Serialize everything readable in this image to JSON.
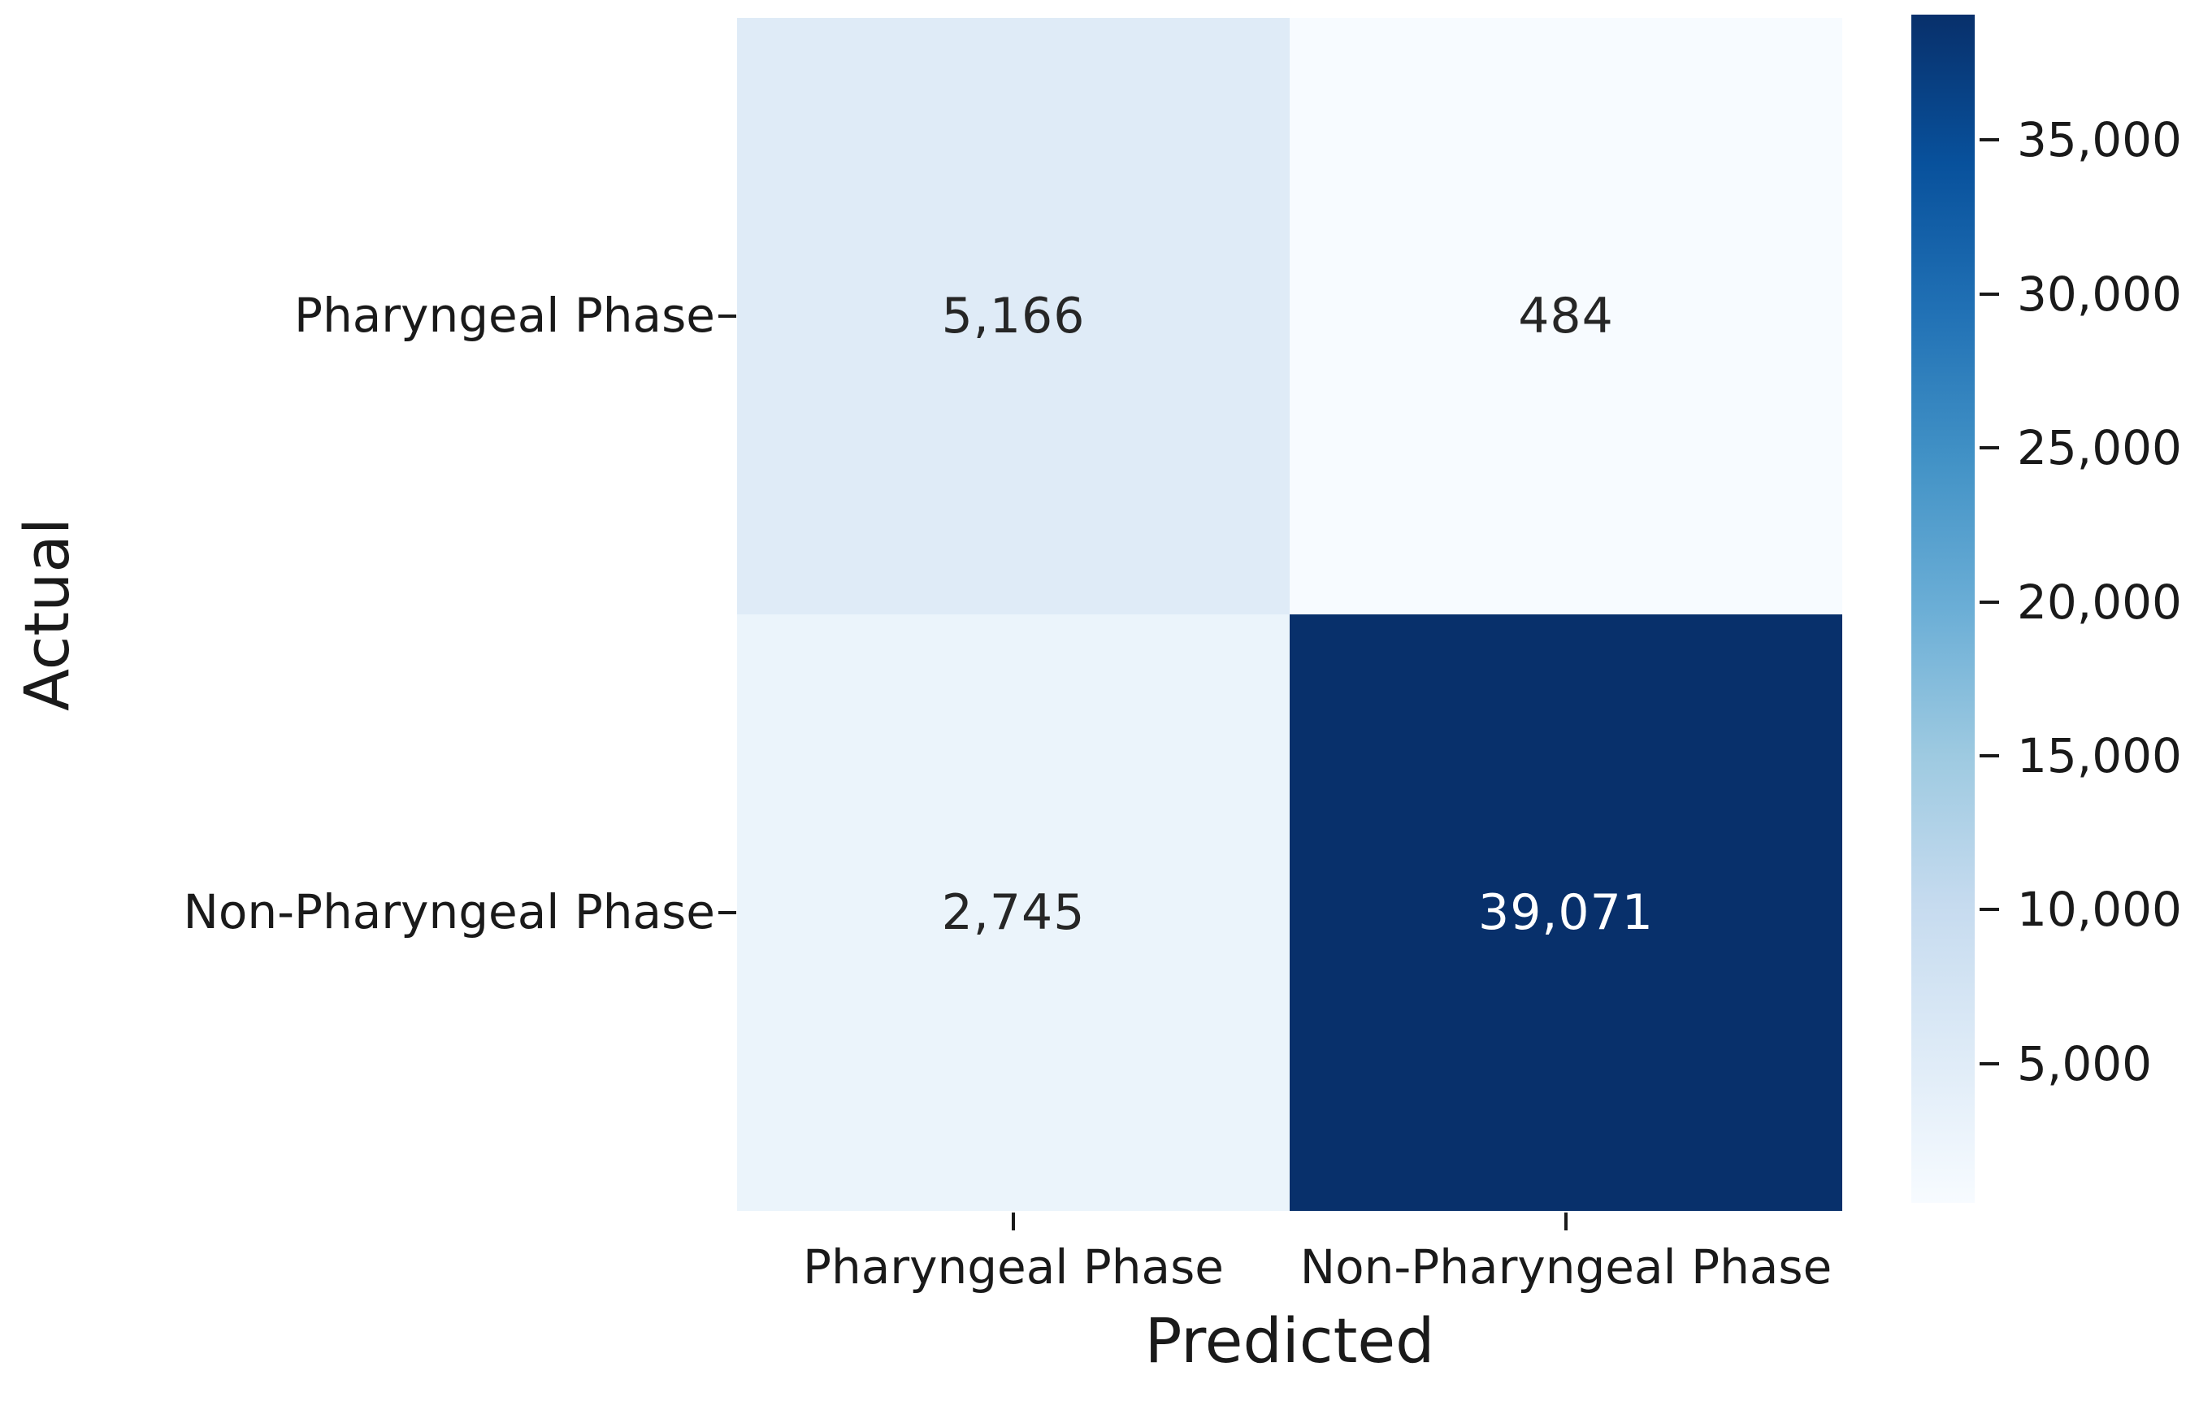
{
  "chart_data": {
    "type": "heatmap",
    "xlabel": "Predicted",
    "ylabel": "Actual",
    "x_categories": [
      "Pharyngeal Phase",
      "Non-Pharyngeal Phase"
    ],
    "y_categories": [
      "Pharyngeal Phase",
      "Non-Pharyngeal Phase"
    ],
    "values": [
      [
        5166,
        484
      ],
      [
        2745,
        39071
      ]
    ],
    "cell_labels": [
      [
        "5,166",
        "484"
      ],
      [
        "2,745",
        "39,071"
      ]
    ],
    "colormap": "Blues",
    "vmin": 484,
    "vmax": 39071,
    "colorbar_ticks": [
      35000,
      30000,
      25000,
      20000,
      15000,
      10000,
      5000
    ],
    "colorbar_tick_labels": [
      "35,000",
      "30,000",
      "25,000",
      "20,000",
      "15,000",
      "10,000",
      "5,000"
    ],
    "legend_position": "right",
    "grid": false
  },
  "colors": {
    "cmap_stops": [
      "#f7fbff",
      "#deebf7",
      "#c6dbef",
      "#9ecae1",
      "#6baed6",
      "#4292c6",
      "#2171b5",
      "#08519c",
      "#08306b"
    ],
    "cell_bg": [
      [
        "#dfebf7",
        "#f7fbff"
      ],
      [
        "#ebf4fb",
        "#08306b"
      ]
    ],
    "cell_text": [
      [
        "#262626",
        "#262626"
      ],
      [
        "#262626",
        "#ffffff"
      ]
    ],
    "tick_text": "#1a1a1a",
    "background": "#ffffff"
  }
}
